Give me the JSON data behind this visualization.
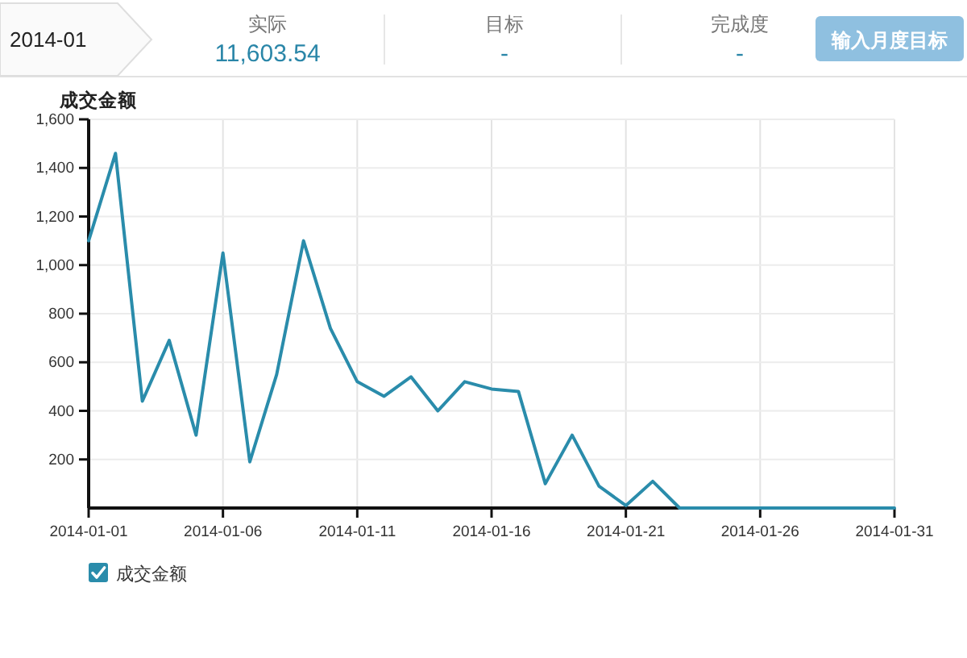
{
  "chart_data": {
    "type": "line",
    "ylabel": "成交金额",
    "annotations": [
      "2014-01",
      "实际",
      "11,603.54",
      "目标",
      "-",
      "完成度",
      "-",
      "输入月度目标"
    ],
    "x": [
      "2014-01-01",
      "2014-01-02",
      "2014-01-03",
      "2014-01-04",
      "2014-01-05",
      "2014-01-06",
      "2014-01-07",
      "2014-01-08",
      "2014-01-09",
      "2014-01-10",
      "2014-01-11",
      "2014-01-12",
      "2014-01-13",
      "2014-01-14",
      "2014-01-15",
      "2014-01-16",
      "2014-01-17",
      "2014-01-18",
      "2014-01-19",
      "2014-01-20",
      "2014-01-21",
      "2014-01-22",
      "2014-01-23",
      "2014-01-24",
      "2014-01-25",
      "2014-01-26",
      "2014-01-27",
      "2014-01-28",
      "2014-01-29",
      "2014-01-30",
      "2014-01-31"
    ],
    "series": [
      {
        "name": "成交金额",
        "color": "#2a8cab",
        "values": [
          1100,
          1460,
          440,
          690,
          300,
          1050,
          190,
          550,
          1100,
          740,
          520,
          460,
          540,
          400,
          520,
          490,
          480,
          100,
          300,
          90,
          10,
          110,
          0,
          0,
          0,
          0,
          0,
          0,
          0,
          0,
          0
        ]
      }
    ],
    "xlim": [
      "2014-01-01",
      "2014-01-31"
    ],
    "xticks": [
      "2014-01-01",
      "2014-01-06",
      "2014-01-11",
      "2014-01-16",
      "2014-01-21",
      "2014-01-26",
      "2014-01-31"
    ],
    "ylim": [
      0,
      1600
    ],
    "yticks": [
      200,
      400,
      600,
      800,
      {
        "value": 1000,
        "label": "1,000"
      },
      {
        "value": 1200,
        "label": "1,200"
      },
      {
        "value": 1400,
        "label": "1,400"
      },
      {
        "value": 1600,
        "label": "1,600"
      }
    ],
    "grid": true,
    "legend": "bottom left"
  }
}
